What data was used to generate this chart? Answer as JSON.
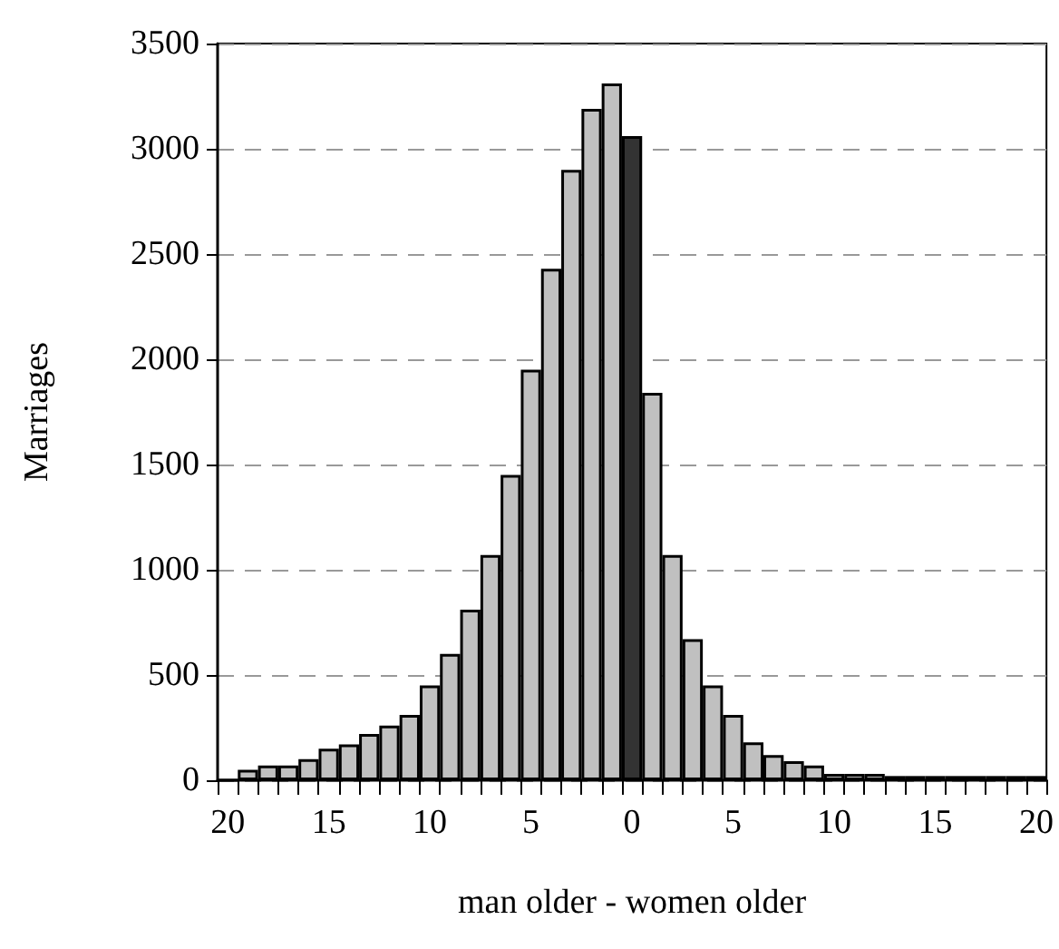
{
  "chart_data": {
    "type": "bar",
    "xlabel": "man older - women older",
    "ylabel": "Marriages",
    "categories": [
      "20",
      null,
      null,
      null,
      null,
      "15",
      null,
      null,
      null,
      null,
      "10",
      null,
      null,
      null,
      null,
      "5",
      null,
      null,
      null,
      null,
      "0",
      null,
      null,
      null,
      null,
      "5",
      null,
      null,
      null,
      null,
      "10",
      null,
      null,
      null,
      null,
      "15",
      null,
      null,
      null,
      null,
      "20"
    ],
    "values": [
      0,
      50,
      70,
      70,
      100,
      150,
      170,
      220,
      260,
      310,
      450,
      600,
      810,
      1070,
      1450,
      1950,
      2430,
      2900,
      3190,
      3310,
      3060,
      1840,
      1070,
      670,
      450,
      310,
      180,
      120,
      90,
      70,
      30,
      30,
      30,
      20,
      20,
      20,
      20,
      20,
      20,
      20,
      20
    ],
    "colors": [
      "#c0c0c0",
      "#c0c0c0",
      "#c0c0c0",
      "#c0c0c0",
      "#c0c0c0",
      "#c0c0c0",
      "#c0c0c0",
      "#c0c0c0",
      "#c0c0c0",
      "#c0c0c0",
      "#c0c0c0",
      "#c0c0c0",
      "#c0c0c0",
      "#c0c0c0",
      "#c0c0c0",
      "#c0c0c0",
      "#c0c0c0",
      "#c0c0c0",
      "#c0c0c0",
      "#c0c0c0",
      "#333333",
      "#c0c0c0",
      "#c0c0c0",
      "#c0c0c0",
      "#c0c0c0",
      "#c0c0c0",
      "#c0c0c0",
      "#c0c0c0",
      "#c0c0c0",
      "#c0c0c0",
      "#c0c0c0",
      "#c0c0c0",
      "#c0c0c0",
      "#c0c0c0",
      "#c0c0c0",
      "#c0c0c0",
      "#c0c0c0",
      "#c0c0c0",
      "#c0c0c0",
      "#c0c0c0",
      "#c0c0c0"
    ],
    "ylim": [
      0,
      3500
    ],
    "yticks": [
      0,
      500,
      1000,
      1500,
      2000,
      2500,
      3000,
      3500
    ],
    "grid": "y"
  }
}
